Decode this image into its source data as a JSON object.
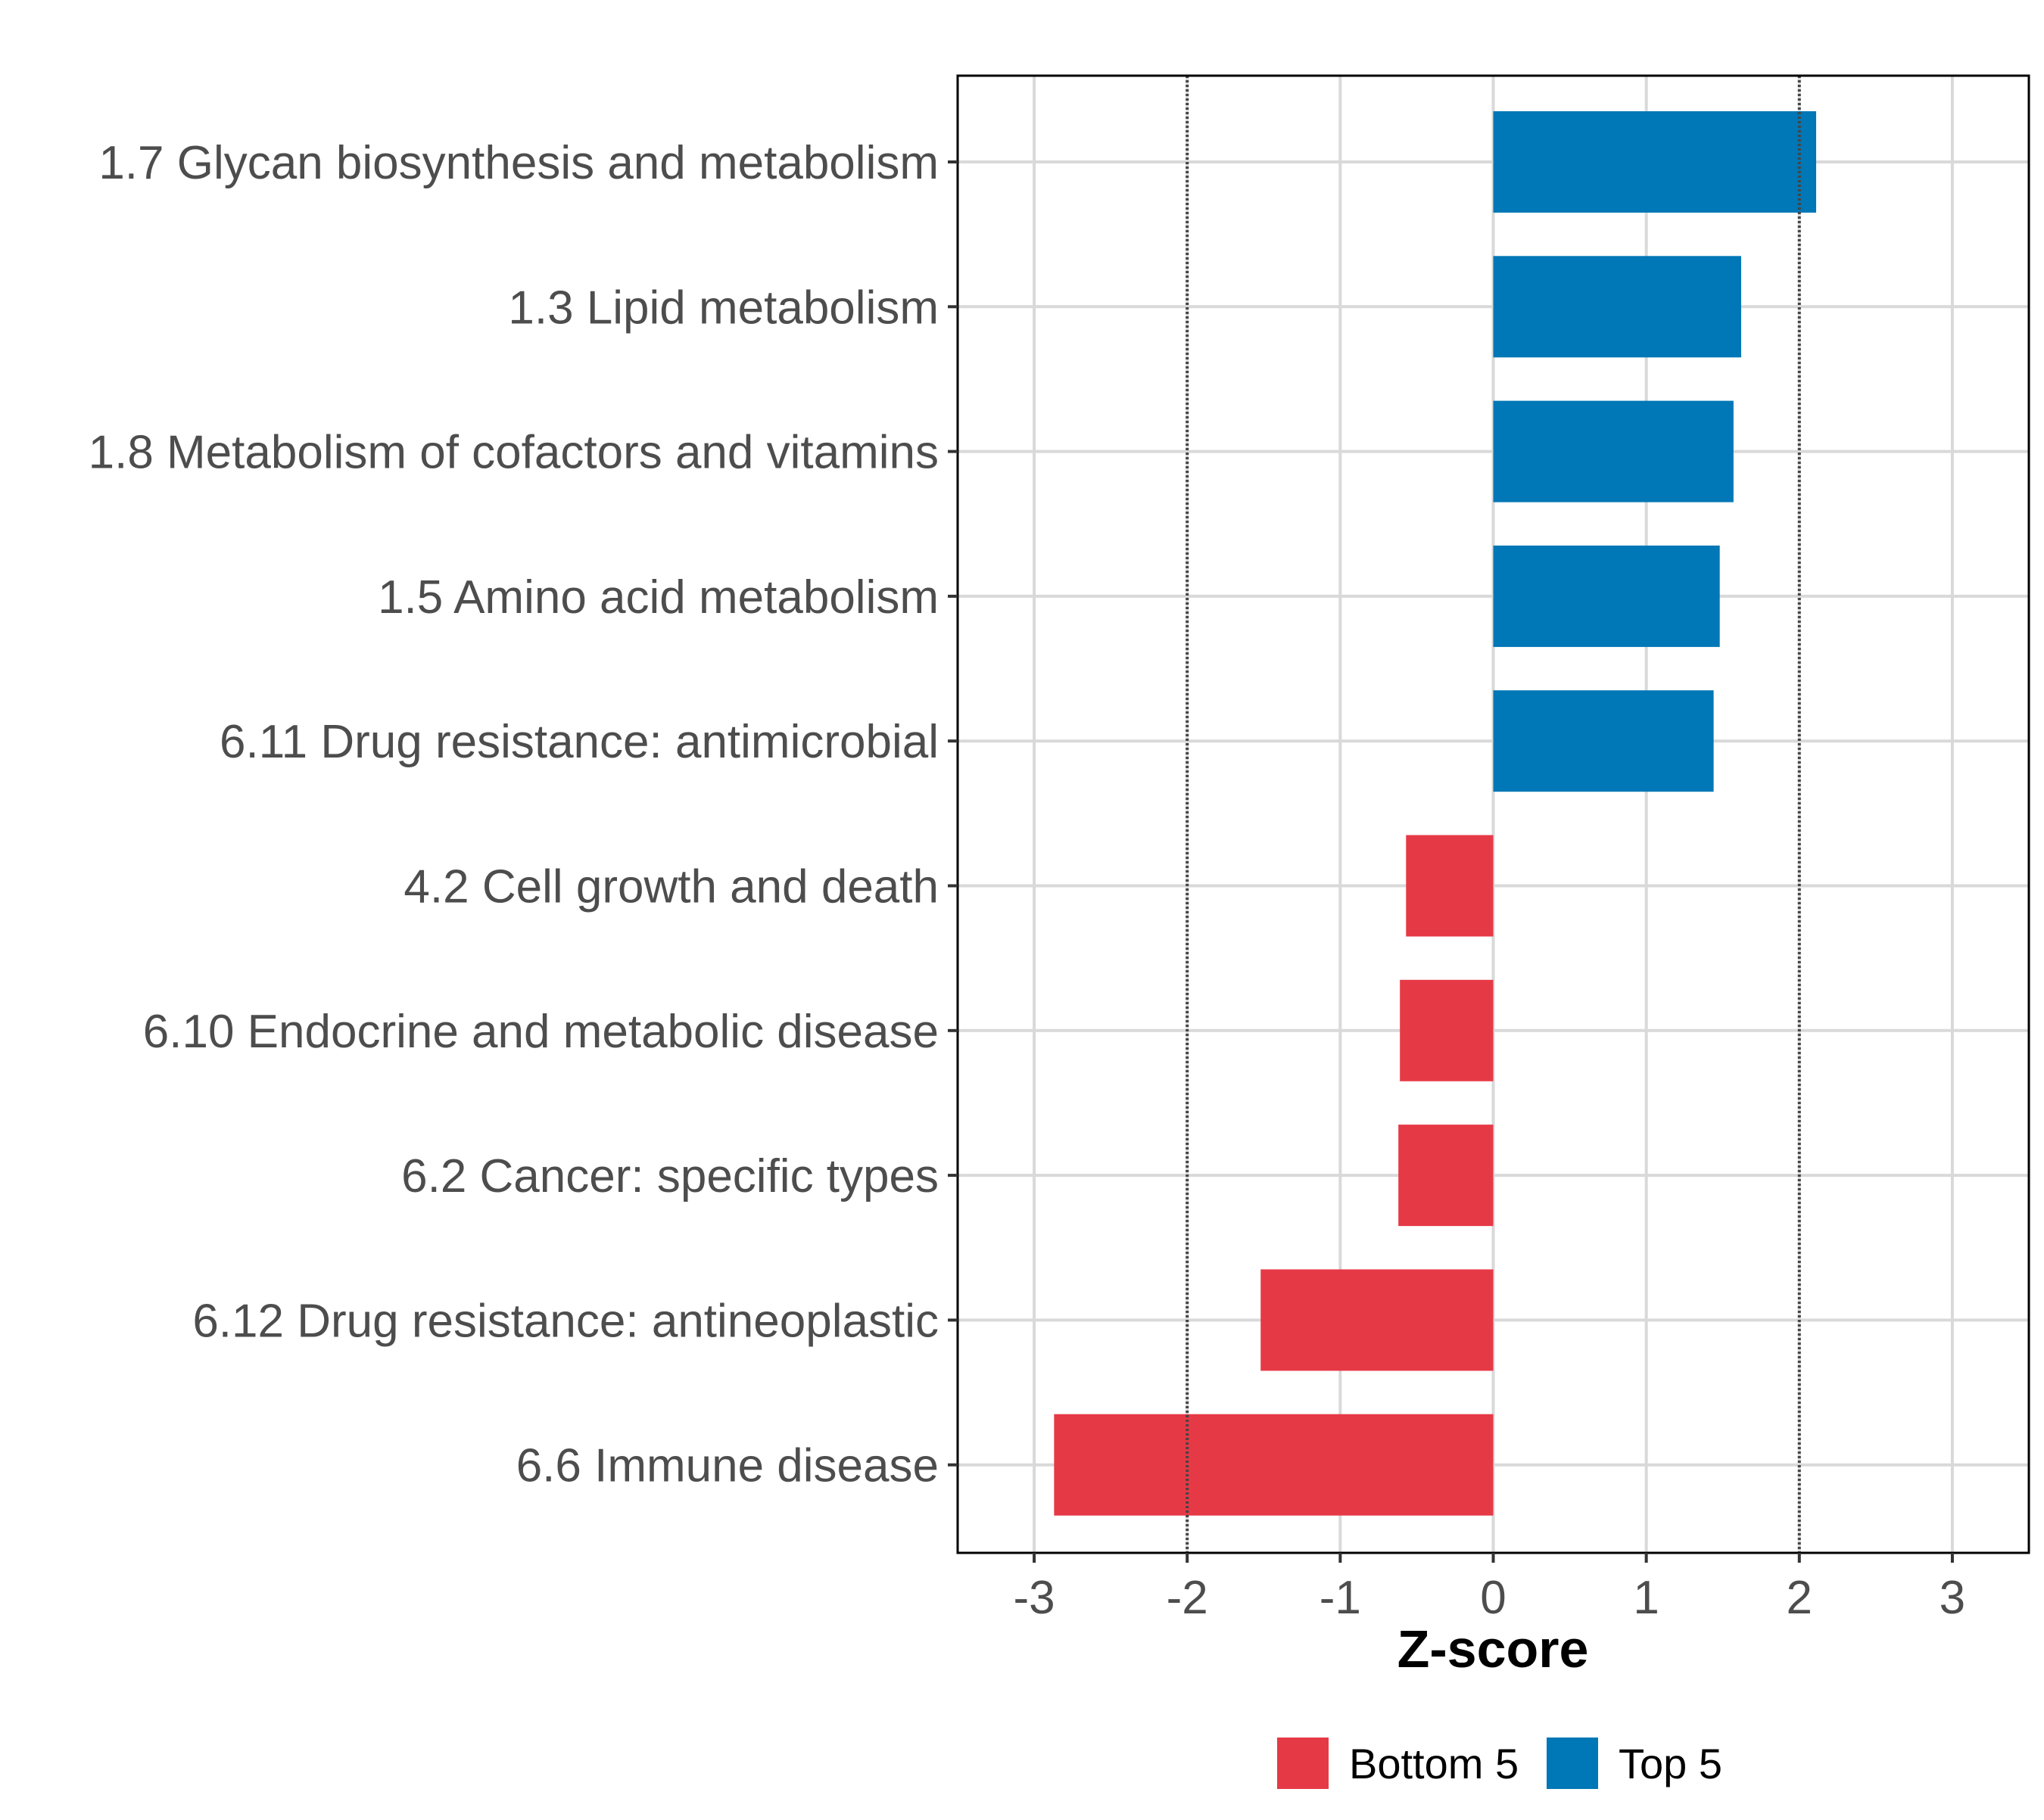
{
  "chart_data": {
    "type": "bar",
    "orientation": "horizontal",
    "categories": [
      "1.7 Glycan biosynthesis and metabolism",
      "1.3 Lipid metabolism",
      "1.8 Metabolism of cofactors and vitamins",
      "1.5 Amino acid metabolism",
      "6.11 Drug resistance: antimicrobial",
      "4.2 Cell growth and death",
      "6.10 Endocrine and metabolic disease",
      "6.2 Cancer: specific types",
      "6.12 Drug resistance: antineoplastic",
      "6.6 Immune disease"
    ],
    "values": [
      2.11,
      1.62,
      1.57,
      1.48,
      1.44,
      -0.57,
      -0.61,
      -0.62,
      -1.52,
      -2.87
    ],
    "groups": [
      "Top 5",
      "Top 5",
      "Top 5",
      "Top 5",
      "Top 5",
      "Bottom 5",
      "Bottom 5",
      "Bottom 5",
      "Bottom 5",
      "Bottom 5"
    ],
    "group_colors": {
      "Top 5": "#0077b6",
      "Bottom 5": "#e63946"
    },
    "xlabel": "Z-score",
    "ylabel": "",
    "xlim": [
      -3.5,
      3.5
    ],
    "xticks": [
      -3,
      -2,
      -1,
      0,
      1,
      2,
      3
    ],
    "xtick_labels": [
      "-3",
      "-2",
      "-1",
      "0",
      "1",
      "2",
      "3"
    ],
    "reference_lines": [
      -2,
      2
    ],
    "grid": true,
    "legend": {
      "position": "bottom",
      "items": [
        {
          "label": "Bottom 5",
          "color": "#e63946"
        },
        {
          "label": "Top 5",
          "color": "#0077b6"
        }
      ]
    }
  }
}
